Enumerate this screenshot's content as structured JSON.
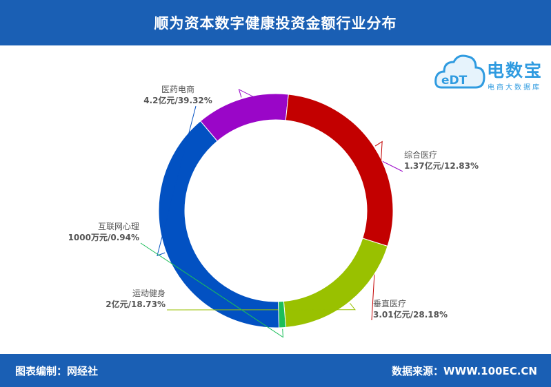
{
  "header": {
    "title": "顺为资本数字健康投资金额行业分布"
  },
  "logo": {
    "name": "电数宝",
    "subtitle": "电商大数据库",
    "badge": "eDT"
  },
  "footer": {
    "left": "图表编制：网经社",
    "right": "数据来源：WWW.100EC.CN"
  },
  "colors": {
    "header": "#1a5fb4",
    "logo": "#2f9be0"
  },
  "chart_data": {
    "type": "pie",
    "variant": "donut",
    "title": "顺为资本数字健康投资金额行业分布",
    "slices": [
      {
        "name": "医药电商",
        "value": 39.32,
        "label": "4.2亿元/39.32%",
        "color": "#0251c2"
      },
      {
        "name": "综合医疗",
        "value": 12.83,
        "label": "1.37亿元/12.83%",
        "color": "#9a06c8"
      },
      {
        "name": "垂直医疗",
        "value": 28.18,
        "label": "3.01亿元/28.18%",
        "color": "#c30000"
      },
      {
        "name": "运动健身",
        "value": 18.73,
        "label": "2亿元/18.73%",
        "color": "#99c100"
      },
      {
        "name": "互联网心理",
        "value": 0.94,
        "label": "1000万元/0.94%",
        "color": "#1cbe5a"
      }
    ]
  }
}
